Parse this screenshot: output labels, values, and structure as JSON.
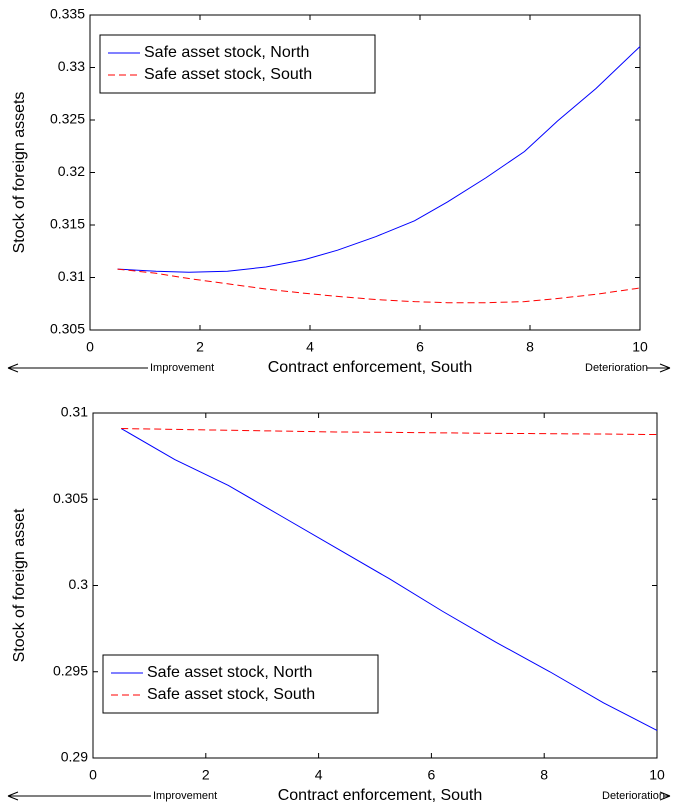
{
  "chart_data": [
    {
      "type": "line",
      "xlabel": "Contract enforcement, South",
      "ylabel": "Stock of foreign assets",
      "annotations": [
        "Improvement",
        "Deterioration"
      ],
      "xlim": [
        0,
        10
      ],
      "xticks": [
        0,
        2,
        4,
        6,
        8,
        10
      ],
      "ylim": [
        0.305,
        0.335
      ],
      "yticks": [
        0.305,
        0.31,
        0.315,
        0.32,
        0.325,
        0.33,
        0.335
      ],
      "legend": "upper left",
      "x": [
        0.5,
        1.2,
        1.8,
        2.5,
        3.2,
        3.9,
        4.5,
        5.2,
        5.9,
        6.5,
        7.2,
        7.9,
        8.5,
        9.2,
        10
      ],
      "series": [
        {
          "name": "Safe asset stock, North",
          "color": "#0000ff",
          "linestyle": "solid",
          "values": [
            0.3108,
            0.3106,
            0.3105,
            0.3106,
            0.311,
            0.3117,
            0.3126,
            0.3139,
            0.3154,
            0.3172,
            0.3195,
            0.322,
            0.3249,
            0.328,
            0.332
          ]
        },
        {
          "name": "Safe asset stock, South",
          "color": "#ff0000",
          "linestyle": "dashed",
          "values": [
            0.3108,
            0.3104,
            0.3099,
            0.3094,
            0.3089,
            0.3085,
            0.3082,
            0.3079,
            0.3077,
            0.3076,
            0.3076,
            0.3077,
            0.308,
            0.3084,
            0.309
          ]
        }
      ]
    },
    {
      "type": "line",
      "xlabel": "Contract enforcement, South",
      "ylabel": "Stock of foreign asset",
      "annotations": [
        "Improvement",
        "Deterioration"
      ],
      "xlim": [
        0,
        10
      ],
      "xticks": [
        0,
        2,
        4,
        6,
        8,
        10
      ],
      "ylim": [
        0.29,
        0.31
      ],
      "yticks": [
        0.29,
        0.295,
        0.3,
        0.305,
        0.31
      ],
      "legend": "lower left",
      "x": [
        0.5,
        1.45,
        2.4,
        3.35,
        4.3,
        5.25,
        6.2,
        7.15,
        8.1,
        9.05,
        10
      ],
      "series": [
        {
          "name": "Safe asset stock, North",
          "color": "#0000ff",
          "linestyle": "solid",
          "values": [
            0.3091,
            0.3073,
            0.3058,
            0.304,
            0.3022,
            0.3004,
            0.2985,
            0.2967,
            0.295,
            0.2932,
            0.2916
          ]
        },
        {
          "name": "Safe asset stock, South",
          "color": "#ff0000",
          "linestyle": "dashed",
          "values": [
            0.3091,
            0.30905,
            0.309,
            0.30895,
            0.3089,
            0.30888,
            0.30885,
            0.30882,
            0.3088,
            0.30878,
            0.30875
          ]
        }
      ]
    }
  ]
}
